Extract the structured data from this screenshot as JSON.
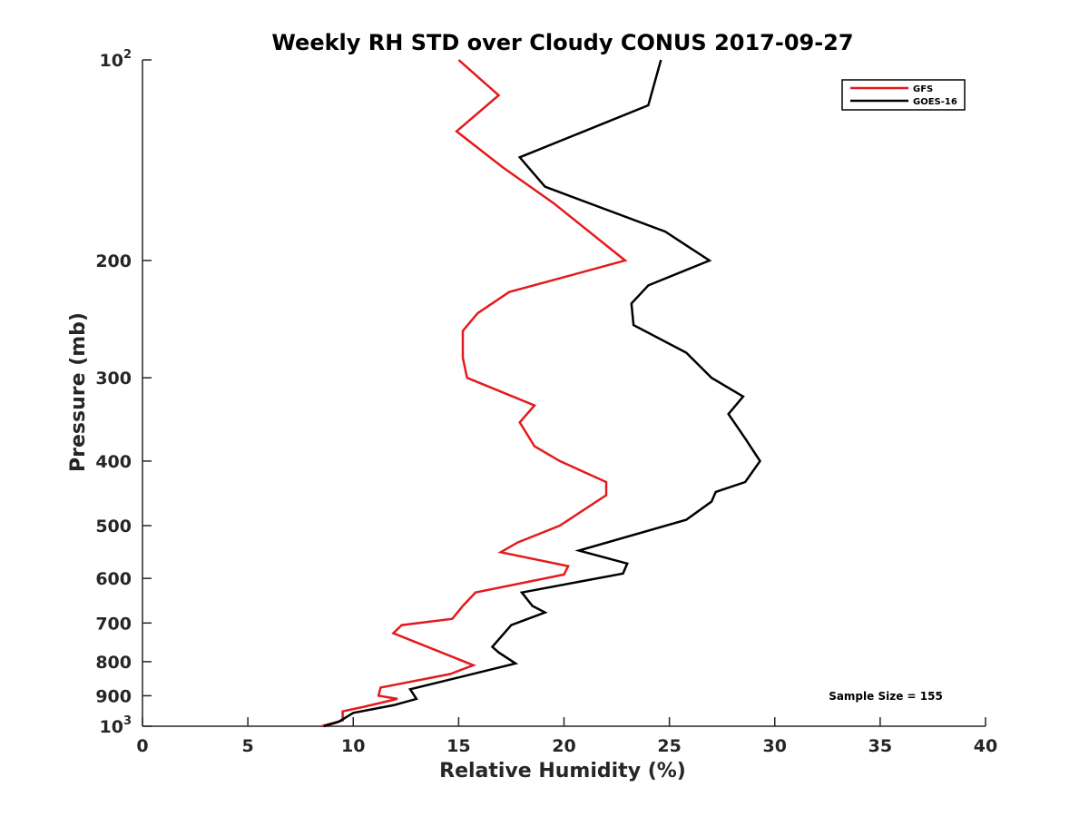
{
  "chart_data": {
    "type": "line",
    "title": "Weekly RH STD over Cloudy CONUS 2017-09-27",
    "xlabel": "Relative Humidity (%)",
    "ylabel": "Pressure (mb)",
    "xlim": [
      0,
      40
    ],
    "ylim": [
      100,
      1000
    ],
    "y_scale": "log",
    "y_reversed": true,
    "grid": false,
    "legend_position": "top-right",
    "x_ticks": [
      0,
      5,
      10,
      15,
      20,
      25,
      30,
      35,
      40
    ],
    "x_tick_labels": [
      "0",
      "5",
      "10",
      "15",
      "20",
      "25",
      "30",
      "35",
      "40"
    ],
    "y_ticks": [
      100,
      200,
      300,
      400,
      500,
      600,
      700,
      800,
      900,
      1000
    ],
    "y_tick_labels": [
      {
        "base": "10",
        "exp": "2"
      },
      {
        "base": "200",
        "exp": ""
      },
      {
        "base": "300",
        "exp": ""
      },
      {
        "base": "400",
        "exp": ""
      },
      {
        "base": "500",
        "exp": ""
      },
      {
        "base": "600",
        "exp": ""
      },
      {
        "base": "700",
        "exp": ""
      },
      {
        "base": "800",
        "exp": ""
      },
      {
        "base": "900",
        "exp": ""
      },
      {
        "base": "10",
        "exp": "3"
      }
    ],
    "series": [
      {
        "name": "GFS",
        "color": "#e31a1c",
        "points": [
          [
            15.0,
            100
          ],
          [
            16.9,
            113
          ],
          [
            14.9,
            128
          ],
          [
            17.1,
            145
          ],
          [
            19.5,
            164
          ],
          [
            22.9,
            200
          ],
          [
            17.4,
            223
          ],
          [
            15.9,
            240
          ],
          [
            15.2,
            255
          ],
          [
            15.2,
            280
          ],
          [
            15.4,
            300
          ],
          [
            18.6,
            330
          ],
          [
            17.9,
            350
          ],
          [
            18.6,
            380
          ],
          [
            19.8,
            400
          ],
          [
            22.0,
            430
          ],
          [
            22.0,
            450
          ],
          [
            19.8,
            500
          ],
          [
            17.8,
            530
          ],
          [
            17.0,
            548
          ],
          [
            20.2,
            575
          ],
          [
            20.0,
            592
          ],
          [
            15.8,
            630
          ],
          [
            15.2,
            660
          ],
          [
            14.7,
            690
          ],
          [
            12.3,
            705
          ],
          [
            11.9,
            725
          ],
          [
            15.7,
            810
          ],
          [
            14.6,
            835
          ],
          [
            11.3,
            875
          ],
          [
            11.2,
            900
          ],
          [
            12.1,
            910
          ],
          [
            10.5,
            935
          ],
          [
            9.5,
            950
          ],
          [
            9.5,
            980
          ],
          [
            8.5,
            1000
          ]
        ]
      },
      {
        "name": "GOES-16",
        "color": "#000000",
        "points": [
          [
            24.6,
            100
          ],
          [
            24.0,
            117
          ],
          [
            17.9,
            140
          ],
          [
            19.1,
            155
          ],
          [
            24.8,
            181
          ],
          [
            26.9,
            200
          ],
          [
            24.0,
            218
          ],
          [
            23.2,
            232
          ],
          [
            23.3,
            250
          ],
          [
            25.8,
            275
          ],
          [
            27.0,
            300
          ],
          [
            28.5,
            320
          ],
          [
            27.8,
            340
          ],
          [
            28.6,
            370
          ],
          [
            29.3,
            400
          ],
          [
            28.6,
            430
          ],
          [
            27.2,
            445
          ],
          [
            27.0,
            460
          ],
          [
            25.8,
            490
          ],
          [
            20.7,
            545
          ],
          [
            23.0,
            570
          ],
          [
            22.8,
            590
          ],
          [
            18.0,
            630
          ],
          [
            18.5,
            660
          ],
          [
            19.1,
            675
          ],
          [
            17.5,
            705
          ],
          [
            16.6,
            760
          ],
          [
            16.9,
            775
          ],
          [
            17.7,
            805
          ],
          [
            12.7,
            880
          ],
          [
            13.0,
            910
          ],
          [
            11.9,
            930
          ],
          [
            10.0,
            955
          ],
          [
            9.3,
            985
          ],
          [
            8.6,
            1000
          ]
        ]
      }
    ],
    "annotation": "Sample Size = 155"
  }
}
